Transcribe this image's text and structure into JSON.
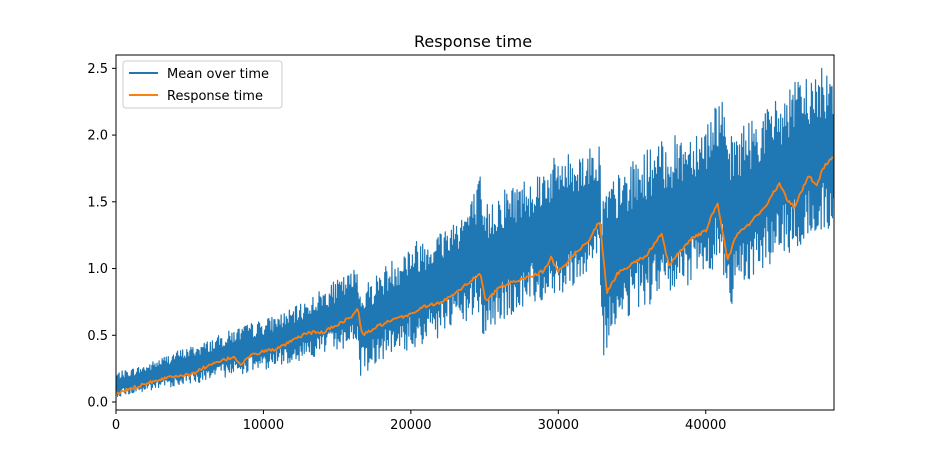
{
  "colors": {
    "mean_series": "#1f77b4",
    "response_series": "#ff7f0e",
    "axes": "#000000",
    "legend_border": "#cccccc",
    "background": "#ffffff"
  },
  "chart_data": {
    "type": "line",
    "title": "Response time",
    "xlabel": "",
    "ylabel": "",
    "xlim": [
      0,
      48700
    ],
    "ylim": [
      -0.06,
      2.6
    ],
    "x_ticks": [
      0,
      10000,
      20000,
      30000,
      40000
    ],
    "x_tick_labels": [
      "0",
      "10000",
      "20000",
      "30000",
      "40000"
    ],
    "y_ticks": [
      0.0,
      0.5,
      1.0,
      1.5,
      2.0,
      2.5
    ],
    "y_tick_labels": [
      "0.0",
      "0.5",
      "1.0",
      "1.5",
      "2.0",
      "2.5"
    ],
    "grid": false,
    "legend_position": "upper-left",
    "series": [
      {
        "name": "Mean over time",
        "color": "#1f77b4",
        "style": "noisy-band",
        "x": [
          0,
          2000,
          4000,
          6000,
          8000,
          10000,
          12000,
          14000,
          16000,
          16400,
          16500,
          18000,
          20000,
          22000,
          24000,
          24700,
          24800,
          26000,
          28000,
          30000,
          32000,
          32800,
          32900,
          34000,
          36000,
          38000,
          40000,
          41000,
          41500,
          42000,
          44000,
          46000,
          48700
        ],
        "low": [
          0.04,
          0.07,
          0.12,
          0.15,
          0.2,
          0.24,
          0.3,
          0.35,
          0.42,
          0.46,
          0.18,
          0.32,
          0.38,
          0.48,
          0.6,
          0.66,
          0.45,
          0.58,
          0.72,
          0.8,
          0.95,
          1.0,
          0.3,
          0.6,
          0.72,
          0.8,
          0.95,
          1.05,
          0.6,
          0.85,
          1.0,
          1.12,
          1.3
        ],
        "high": [
          0.22,
          0.28,
          0.38,
          0.45,
          0.55,
          0.62,
          0.7,
          0.85,
          0.98,
          1.05,
          0.85,
          1.0,
          1.2,
          1.3,
          1.5,
          1.7,
          1.45,
          1.6,
          1.7,
          1.85,
          1.9,
          1.95,
          1.6,
          1.7,
          1.9,
          2.0,
          2.1,
          2.35,
          1.95,
          2.05,
          2.2,
          2.4,
          2.55
        ]
      },
      {
        "name": "Response time",
        "color": "#ff7f0e",
        "style": "line",
        "x": [
          0,
          2000,
          4000,
          5000,
          6000,
          8000,
          8500,
          9000,
          10000,
          11000,
          12000,
          13000,
          14000,
          15000,
          16000,
          16400,
          16700,
          18000,
          20000,
          21000,
          22000,
          23000,
          24000,
          24700,
          25100,
          26000,
          27000,
          28000,
          29000,
          29500,
          30000,
          31000,
          32000,
          32800,
          33300,
          34000,
          35000,
          36000,
          37000,
          37500,
          38000,
          39000,
          40000,
          40800,
          41000,
          41500,
          42000,
          43000,
          44000,
          45000,
          45500,
          46000,
          47000,
          47500,
          48000,
          48700
        ],
        "y": [
          0.06,
          0.14,
          0.2,
          0.2,
          0.26,
          0.34,
          0.28,
          0.34,
          0.38,
          0.4,
          0.46,
          0.52,
          0.52,
          0.58,
          0.64,
          0.7,
          0.5,
          0.58,
          0.66,
          0.72,
          0.74,
          0.82,
          0.9,
          0.97,
          0.75,
          0.86,
          0.9,
          0.94,
          0.98,
          1.08,
          0.98,
          1.1,
          1.2,
          1.36,
          0.82,
          0.96,
          1.04,
          1.1,
          1.26,
          1.02,
          1.1,
          1.22,
          1.28,
          1.5,
          1.36,
          1.06,
          1.24,
          1.34,
          1.46,
          1.64,
          1.52,
          1.46,
          1.7,
          1.62,
          1.76,
          1.84
        ]
      }
    ]
  }
}
